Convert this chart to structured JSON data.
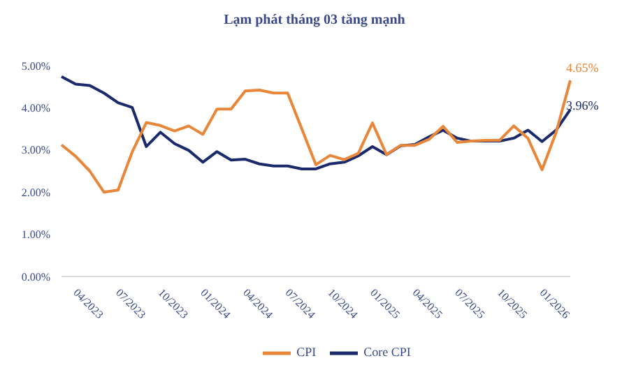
{
  "chart_data": {
    "type": "line",
    "title": "Lạm phát tháng 03 tăng mạnh",
    "categories": [
      null,
      "04/2023",
      null,
      null,
      "07/2023",
      null,
      null,
      "10/2023",
      null,
      null,
      "01/2024",
      null,
      null,
      "04/2024",
      null,
      null,
      "07/2024",
      null,
      null,
      "10/2024",
      null,
      null,
      "01/2025",
      null,
      null,
      "04/2025",
      null,
      null,
      "07/2025",
      null,
      null,
      "10/2025",
      null,
      null,
      "01/2026",
      null,
      null
    ],
    "series": [
      {
        "name": "Core CPI",
        "color": "#1b2a6b",
        "values": [
          4.74,
          4.56,
          4.53,
          4.35,
          4.12,
          4.01,
          3.08,
          3.42,
          3.15,
          2.99,
          2.71,
          2.96,
          2.76,
          2.78,
          2.67,
          2.62,
          2.62,
          2.55,
          2.55,
          2.67,
          2.71,
          2.86,
          3.08,
          2.89,
          3.1,
          3.13,
          3.31,
          3.47,
          3.28,
          3.21,
          3.21,
          3.21,
          3.28,
          3.47,
          3.2,
          3.47,
          3.96
        ],
        "value_labels": [
          null,
          null,
          null,
          null,
          null,
          null,
          null,
          null,
          null,
          null,
          null,
          null,
          null,
          null,
          null,
          null,
          null,
          null,
          null,
          null,
          null,
          null,
          null,
          null,
          null,
          null,
          null,
          null,
          null,
          null,
          null,
          null,
          null,
          null,
          null,
          null,
          "3.96%"
        ]
      },
      {
        "name": "CPI",
        "color": "#e8873a",
        "values": [
          3.12,
          2.85,
          2.5,
          2.0,
          2.05,
          2.95,
          3.65,
          3.58,
          3.45,
          3.57,
          3.37,
          3.97,
          3.97,
          4.4,
          4.42,
          4.35,
          4.35,
          3.5,
          2.65,
          2.87,
          2.77,
          2.92,
          3.64,
          2.89,
          3.11,
          3.11,
          3.25,
          3.56,
          3.18,
          3.21,
          3.23,
          3.23,
          3.57,
          3.28,
          2.53,
          3.42,
          4.65
        ],
        "value_labels": [
          null,
          null,
          null,
          null,
          null,
          null,
          null,
          null,
          null,
          null,
          null,
          null,
          null,
          null,
          null,
          null,
          null,
          null,
          null,
          null,
          null,
          null,
          null,
          null,
          null,
          null,
          null,
          null,
          null,
          null,
          null,
          null,
          null,
          null,
          null,
          null,
          "4.65%"
        ]
      }
    ],
    "ylim": [
      0,
      5
    ],
    "yticks": [
      {
        "value": 0,
        "label": "0.00%"
      },
      {
        "value": 1,
        "label": "1.00%"
      },
      {
        "value": 2,
        "label": "2.00%"
      },
      {
        "value": 3,
        "label": "3.00%"
      },
      {
        "value": 4,
        "label": "4.00%"
      },
      {
        "value": 5,
        "label": "5.00%"
      }
    ],
    "grid": false,
    "legend": "bottom",
    "marker": "none",
    "line_style": "solid"
  }
}
